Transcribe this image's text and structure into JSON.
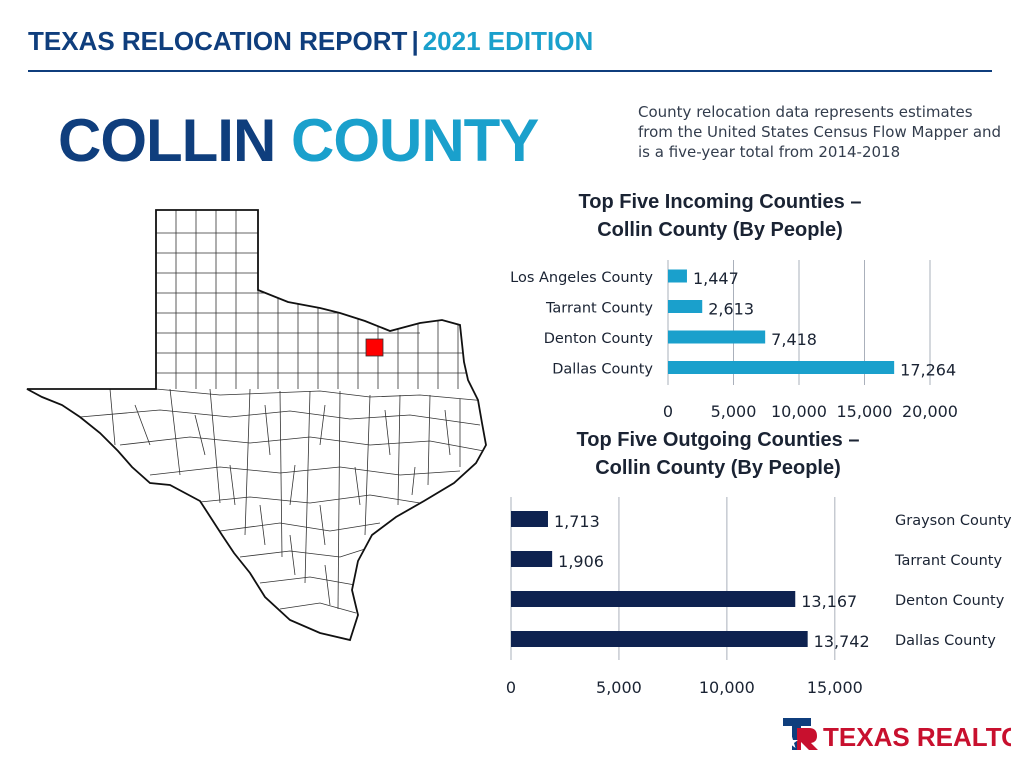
{
  "header": {
    "title_main": "TEXAS RELOCATION REPORT",
    "separator": "|",
    "title_edition": "2021 EDITION"
  },
  "county": {
    "word1": "COLLIN",
    "word2": "COUNTY"
  },
  "note": "County relocation data represents estimates from the United States Census Flow Mapper and is a five-year total from 2014-2018",
  "colors": {
    "navy": "#0f3e7d",
    "blue": "#1aa0cc",
    "incoming_bar": "#1aa0cc",
    "outgoing_bar": "#0e2250",
    "highlight": "#ff0000",
    "logo_red": "#c8102e"
  },
  "map": {
    "highlighted_county": "Collin"
  },
  "logo": {
    "text": "TEXAS REALTORS"
  },
  "chart_data": [
    {
      "type": "bar",
      "orientation": "horizontal",
      "title_line1": "Top Five Incoming Counties –",
      "title_line2": "Collin County (By People)",
      "categories": [
        "Los Angeles County",
        "Tarrant County",
        "Denton County",
        "Dallas County"
      ],
      "values": [
        1447,
        2613,
        7418,
        17264
      ],
      "value_labels": [
        "1,447",
        "2,613",
        "7,418",
        "17,264"
      ],
      "xlim": [
        0,
        20000
      ],
      "ticks": [
        0,
        5000,
        10000,
        15000,
        20000
      ],
      "tick_labels": [
        "0",
        "5,000",
        "10,000",
        "15,000",
        "20,000"
      ],
      "category_side": "left",
      "grid": true
    },
    {
      "type": "bar",
      "orientation": "horizontal",
      "title_line1": "Top Five Outgoing Counties –",
      "title_line2": "Collin County (By People)",
      "categories": [
        "Grayson County",
        "Tarrant County",
        "Denton County",
        "Dallas County"
      ],
      "values": [
        1713,
        1906,
        13167,
        13742
      ],
      "value_labels": [
        "1,713",
        "1,906",
        "13,167",
        "13,742"
      ],
      "xlim": [
        0,
        17000
      ],
      "ticks": [
        0,
        5000,
        10000,
        15000
      ],
      "tick_labels": [
        "0",
        "5,000",
        "10,000",
        "15,000"
      ],
      "category_side": "right",
      "grid": true
    }
  ]
}
